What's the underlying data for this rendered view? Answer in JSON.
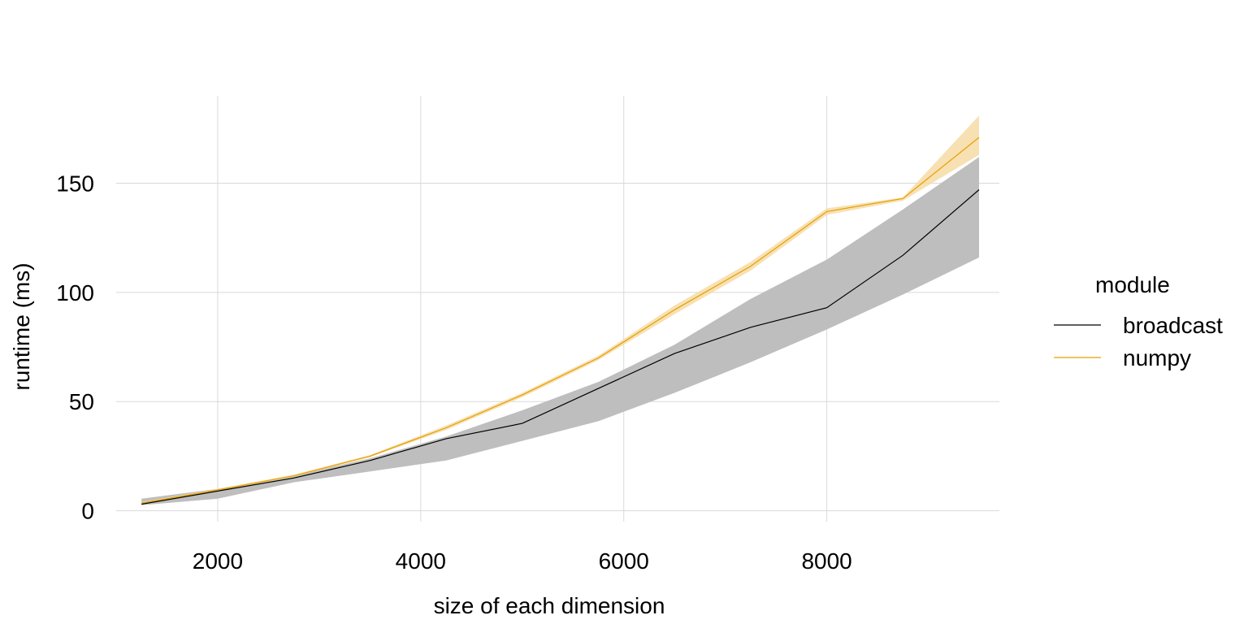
{
  "chart_data": {
    "type": "line",
    "title": "",
    "xlabel": "size of each dimension",
    "ylabel": "runtime (ms)",
    "xlim": [
      1000,
      9700
    ],
    "ylim": [
      -5,
      190
    ],
    "x_ticks": [
      2000,
      4000,
      6000,
      8000
    ],
    "y_ticks": [
      0,
      50,
      100,
      150
    ],
    "grid": true,
    "legend": {
      "title": "module",
      "placement": "right"
    },
    "x": [
      1250,
      2000,
      2750,
      3500,
      4250,
      5000,
      5750,
      6500,
      7250,
      8000,
      8750,
      9500
    ],
    "series": [
      {
        "name": "broadcast",
        "color": "#000000",
        "band_color": "#bebebe",
        "values": [
          3,
          9,
          15,
          23,
          33,
          40,
          56,
          72,
          84,
          93,
          117,
          147
        ],
        "lower": [
          2.5,
          5.5,
          13,
          18,
          23,
          32,
          41,
          54,
          68,
          83,
          99,
          116
        ],
        "upper": [
          5.5,
          10,
          16,
          24,
          34,
          46,
          59,
          76,
          97,
          115,
          138,
          162
        ]
      },
      {
        "name": "numpy",
        "color": "#e69f00",
        "band_color": "#f5d9a0",
        "values": [
          3.5,
          9.5,
          16,
          25,
          38,
          53,
          70,
          92,
          112,
          137,
          143,
          171
        ],
        "lower": [
          3,
          9,
          15.5,
          24.5,
          37,
          52,
          69,
          90,
          110,
          135.5,
          142,
          163
        ],
        "upper": [
          4,
          10,
          16.5,
          25.5,
          39,
          54,
          71,
          94,
          114,
          138.5,
          143.5,
          181
        ]
      }
    ]
  }
}
